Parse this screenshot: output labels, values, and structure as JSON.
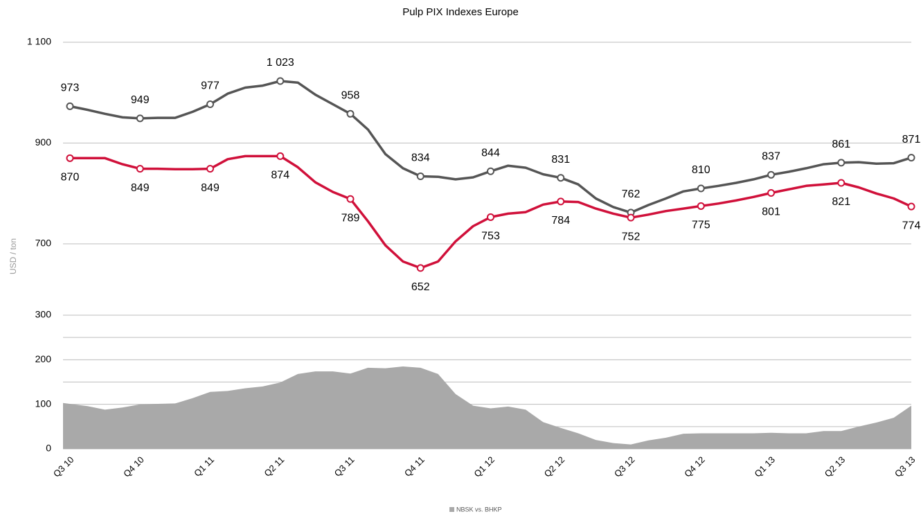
{
  "chart_data": [
    {
      "type": "line",
      "title": "Pulp PIX Indexes Europe",
      "ylabel": "USD / ton",
      "ylim": [
        640,
        1100
      ],
      "yticks": [
        {
          "value": 1100,
          "label": "1 100"
        },
        900,
        700
      ],
      "grid": true,
      "series": [
        {
          "color": "#555555",
          "values": [
            973,
            966,
            958,
            951,
            949,
            950,
            950,
            962,
            977,
            998,
            1010,
            1014,
            1023,
            1020,
            996,
            977,
            958,
            927,
            878,
            850,
            834,
            833,
            828,
            832,
            844,
            855,
            851,
            838,
            831,
            818,
            790,
            773,
            762,
            777,
            790,
            804,
            810,
            815,
            821,
            828,
            837,
            843,
            850,
            858,
            861,
            862,
            859,
            860,
            871
          ],
          "value_labels": [
            "973",
            null,
            null,
            null,
            "949",
            null,
            null,
            null,
            "977",
            null,
            null,
            null,
            "1 023",
            null,
            null,
            null,
            "958",
            null,
            null,
            null,
            "834",
            null,
            null,
            null,
            "844",
            null,
            null,
            null,
            "831",
            null,
            null,
            null,
            "762",
            null,
            null,
            null,
            "810",
            null,
            null,
            null,
            "837",
            null,
            null,
            null,
            "861",
            null,
            null,
            null,
            "871"
          ]
        },
        {
          "color": "#d0103a",
          "values": [
            870,
            870,
            870,
            858,
            849,
            849,
            848,
            848,
            849,
            868,
            874,
            874,
            874,
            852,
            822,
            803,
            789,
            745,
            697,
            665,
            652,
            665,
            705,
            735,
            753,
            760,
            763,
            778,
            784,
            783,
            770,
            760,
            752,
            758,
            765,
            770,
            775,
            780,
            786,
            793,
            801,
            808,
            815,
            818,
            821,
            812,
            800,
            790,
            774
          ],
          "value_labels": [
            "870",
            null,
            null,
            null,
            "849",
            null,
            null,
            null,
            "849",
            null,
            null,
            null,
            "874",
            null,
            null,
            null,
            "789",
            null,
            null,
            null,
            "652",
            null,
            null,
            null,
            "753",
            null,
            null,
            null,
            "784",
            null,
            null,
            null,
            "752",
            null,
            null,
            null,
            "775",
            null,
            null,
            null,
            "801",
            null,
            null,
            null,
            "821",
            null,
            null,
            null,
            "774"
          ]
        }
      ]
    },
    {
      "type": "area",
      "categories": [
        "Q3 10",
        null,
        null,
        null,
        "Q4 10",
        null,
        null,
        null,
        "Q1 11",
        null,
        null,
        null,
        "Q2 11",
        null,
        null,
        null,
        "Q3 11",
        null,
        null,
        null,
        "Q4 11",
        null,
        null,
        null,
        "Q1 12",
        null,
        null,
        null,
        "Q2 12",
        null,
        null,
        null,
        "Q3 12",
        null,
        null,
        null,
        "Q4 12",
        null,
        null,
        null,
        "Q1 13",
        null,
        null,
        null,
        "Q2 13",
        null,
        null,
        null,
        "Q3 13"
      ],
      "ylim": [
        0,
        300
      ],
      "yticks": [
        0,
        100,
        200,
        300
      ],
      "minor_yticks": [
        50,
        150,
        250
      ],
      "grid": true,
      "legend": "bottom",
      "series": [
        {
          "name": "NBSK vs. BHKP",
          "color": "#a9a9a9",
          "values": [
            103,
            96,
            88,
            93,
            100,
            101,
            102,
            114,
            128,
            130,
            136,
            140,
            149,
            168,
            174,
            174,
            169,
            182,
            181,
            185,
            182,
            168,
            123,
            97,
            91,
            95,
            88,
            60,
            47,
            35,
            20,
            13,
            10,
            19,
            25,
            34,
            35,
            35,
            35,
            35,
            36,
            35,
            35,
            40,
            40,
            50,
            59,
            70,
            97
          ]
        }
      ]
    }
  ]
}
